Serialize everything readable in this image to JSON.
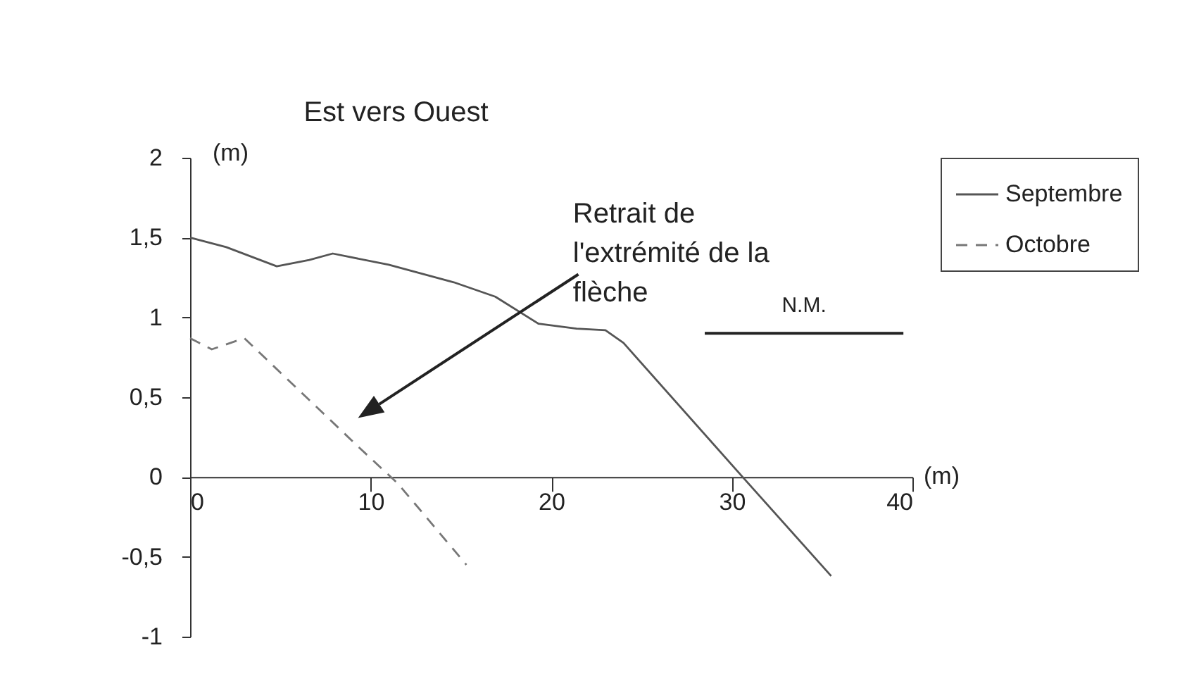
{
  "chart_data": {
    "type": "line",
    "title": "Est vers Ouest",
    "xlabel": "(m)",
    "ylabel": "(m)",
    "xlim": [
      0,
      40
    ],
    "xticks": [
      0,
      10,
      20,
      30,
      40
    ],
    "ylim": [
      -1,
      2
    ],
    "yticks": [
      {
        "value": -1,
        "label": "-1"
      },
      {
        "value": -0.5,
        "label": "-0,5"
      },
      0,
      {
        "value": 0.5,
        "label": "0,5"
      },
      1,
      {
        "value": 1.5,
        "label": "1,5"
      },
      2
    ],
    "series": [
      {
        "name": "Septembre",
        "color": "#555555",
        "line_style": "solid",
        "x": [
          0,
          2,
          4.8,
          6.6,
          7.9,
          11,
          14.6,
          16.9,
          19.3,
          21.4,
          23,
          24,
          30.6,
          35.5
        ],
        "values": [
          1.5,
          1.44,
          1.32,
          1.36,
          1.4,
          1.33,
          1.22,
          1.13,
          0.96,
          0.93,
          0.92,
          0.84,
          0,
          -0.62
        ]
      },
      {
        "name": "Octobre",
        "color": "#777777",
        "line_style": "dashed",
        "x": [
          0,
          1.2,
          3,
          9.5,
          11.5,
          15.3
        ],
        "values": [
          0.87,
          0.8,
          0.87,
          0.17,
          -0.04,
          -0.55
        ]
      },
      {
        "color": "#222222",
        "line_style": "solid",
        "x": [
          28.5,
          39.5
        ],
        "values": [
          0.9,
          0.9
        ]
      }
    ],
    "annotations": [
      "Retrait de l'extrémité de la flèche",
      {
        "text": "N.M.",
        "x": 34,
        "y": 0.9
      }
    ],
    "legend": "right"
  }
}
